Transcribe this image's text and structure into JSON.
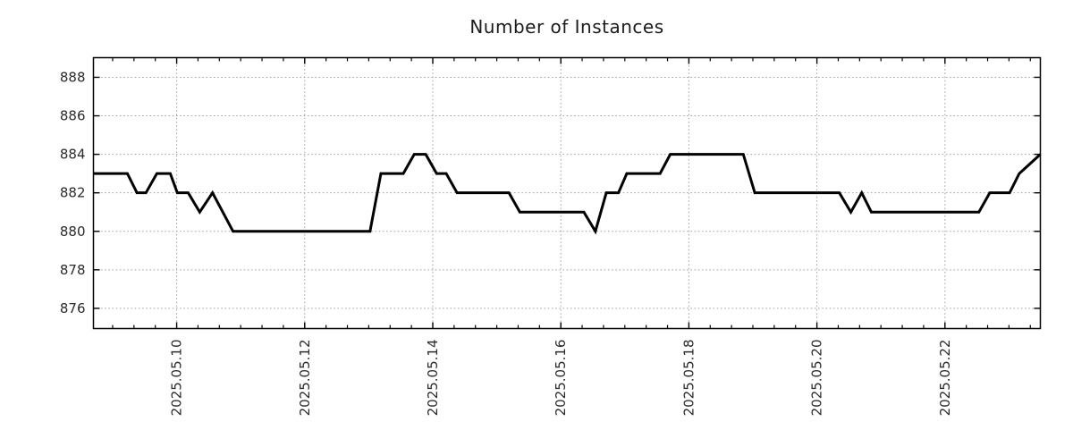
{
  "chart_data": {
    "type": "line",
    "title": "Number of Instances",
    "xlabel": "",
    "ylabel": "",
    "x_encoding": "day of May 2025 (decimal)",
    "xlim": [
      8.7,
      23.49
    ],
    "ylim": [
      874.95,
      889.02
    ],
    "grid": {
      "show": true,
      "color": "#a3a3a3"
    },
    "legend": {
      "show": false
    },
    "axis_color": "#000000",
    "tick_label_color": "#2b2b2b",
    "x_major_ticks": [
      {
        "value": 10,
        "label": "2025.05.10"
      },
      {
        "value": 12,
        "label": "2025.05.12"
      },
      {
        "value": 14,
        "label": "2025.05.14"
      },
      {
        "value": 16,
        "label": "2025.05.16"
      },
      {
        "value": 18,
        "label": "2025.05.18"
      },
      {
        "value": 20,
        "label": "2025.05.20"
      },
      {
        "value": 22,
        "label": "2025.05.22"
      }
    ],
    "x_minor_tick_step_days": 0.33333,
    "y_major_ticks": [
      876,
      878,
      880,
      882,
      884,
      886,
      888
    ],
    "series": [
      {
        "name": "Number of Instances",
        "color": "#000000",
        "line_width": 3,
        "points": [
          [
            8.7,
            883
          ],
          [
            9.23,
            883
          ],
          [
            9.38,
            882
          ],
          [
            9.52,
            882
          ],
          [
            9.69,
            883
          ],
          [
            9.9,
            883
          ],
          [
            10.01,
            882
          ],
          [
            10.18,
            882
          ],
          [
            10.36,
            881
          ],
          [
            10.56,
            882
          ],
          [
            10.88,
            880
          ],
          [
            13.02,
            880
          ],
          [
            13.19,
            883
          ],
          [
            13.54,
            883
          ],
          [
            13.71,
            884
          ],
          [
            13.89,
            884
          ],
          [
            14.06,
            883
          ],
          [
            14.21,
            883
          ],
          [
            14.38,
            882
          ],
          [
            15.19,
            882
          ],
          [
            15.36,
            881
          ],
          [
            16.36,
            881
          ],
          [
            16.54,
            880
          ],
          [
            16.71,
            882
          ],
          [
            16.9,
            882
          ],
          [
            17.03,
            883
          ],
          [
            17.55,
            883
          ],
          [
            17.71,
            884
          ],
          [
            18.85,
            884
          ],
          [
            19.03,
            882
          ],
          [
            20.35,
            882
          ],
          [
            20.53,
            881
          ],
          [
            20.7,
            882
          ],
          [
            20.85,
            881
          ],
          [
            22.53,
            881
          ],
          [
            22.7,
            882
          ],
          [
            23.01,
            882
          ],
          [
            23.16,
            883
          ],
          [
            23.49,
            884
          ]
        ]
      }
    ]
  }
}
